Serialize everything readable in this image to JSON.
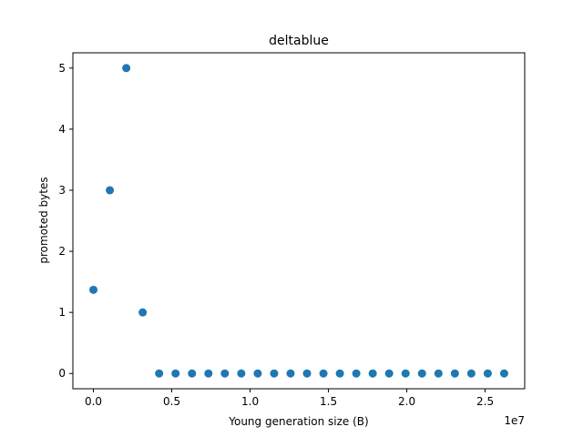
{
  "chart_data": {
    "type": "scatter",
    "title": "deltablue",
    "xlabel": "Young generation size (B)",
    "ylabel": "promoted bytes",
    "x_offset_label": "1e7",
    "xlim": [
      -1310720,
      27525120
    ],
    "ylim": [
      -0.25,
      5.25
    ],
    "x_ticks": [
      0,
      5000000,
      10000000,
      15000000,
      20000000,
      25000000
    ],
    "x_tick_labels": [
      "0.0",
      "0.5",
      "1.0",
      "1.5",
      "2.0",
      "2.5"
    ],
    "y_ticks": [
      0,
      1,
      2,
      3,
      4,
      5
    ],
    "y_tick_labels": [
      "0",
      "1",
      "2",
      "3",
      "4",
      "5"
    ],
    "grid": false,
    "series_color": "#1f77b4",
    "points": [
      {
        "x": 0,
        "y": 1.37
      },
      {
        "x": 1048576,
        "y": 3
      },
      {
        "x": 2097152,
        "y": 5
      },
      {
        "x": 3145728,
        "y": 1
      },
      {
        "x": 4194304,
        "y": 0
      },
      {
        "x": 5242880,
        "y": 0
      },
      {
        "x": 6291456,
        "y": 0
      },
      {
        "x": 7340032,
        "y": 0
      },
      {
        "x": 8388608,
        "y": 0
      },
      {
        "x": 9437184,
        "y": 0
      },
      {
        "x": 10485760,
        "y": 0
      },
      {
        "x": 11534336,
        "y": 0
      },
      {
        "x": 12582912,
        "y": 0
      },
      {
        "x": 13631488,
        "y": 0
      },
      {
        "x": 14680064,
        "y": 0
      },
      {
        "x": 15728640,
        "y": 0
      },
      {
        "x": 16777216,
        "y": 0
      },
      {
        "x": 17825792,
        "y": 0
      },
      {
        "x": 18874368,
        "y": 0
      },
      {
        "x": 19922944,
        "y": 0
      },
      {
        "x": 20971520,
        "y": 0
      },
      {
        "x": 22020096,
        "y": 0
      },
      {
        "x": 23068672,
        "y": 0
      },
      {
        "x": 24117248,
        "y": 0
      },
      {
        "x": 25165824,
        "y": 0
      },
      {
        "x": 26214400,
        "y": 0
      }
    ]
  }
}
